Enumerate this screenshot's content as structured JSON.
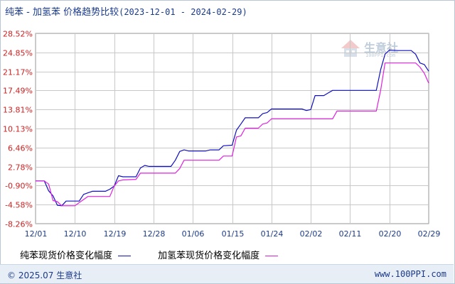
{
  "header": {
    "title": "纯苯 - 加氢苯 价格趋势比较",
    "date_range": "(2023-12-01 - 2024-02-29)"
  },
  "watermark": {
    "brand": "生意社",
    "url": "100PPI.com"
  },
  "footer": {
    "copyright": "© 2025.07 生意社",
    "site": "www.100PPI.com"
  },
  "colors": {
    "series1": "#1010c0",
    "series2": "#e020e0",
    "grid": "#c8c8c8",
    "tick_text": "#cc2222",
    "xtick_text": "#1a3a8a"
  },
  "chart_data": {
    "type": "line",
    "title": "纯苯 - 加氢苯 价格趋势比较(2023-12-01 - 2024-02-29)",
    "y_ticks": [
      "28.52%",
      "24.85%",
      "21.17%",
      "17.49%",
      "13.81%",
      "10.13%",
      "6.46%",
      "2.78%",
      "-0.90%",
      "-4.58%",
      "-8.26%"
    ],
    "y_tick_values": [
      28.52,
      24.85,
      21.17,
      17.49,
      13.81,
      10.13,
      6.46,
      2.78,
      -0.9,
      -4.58,
      -8.26
    ],
    "ylim": [
      -8.26,
      28.52
    ],
    "x_ticks": [
      "12/01",
      "12/10",
      "12/19",
      "12/28",
      "01/06",
      "01/15",
      "01/24",
      "02/02",
      "02/11",
      "02/20",
      "02/29"
    ],
    "x_start": "12/01",
    "x_end": "02/29",
    "grid": true,
    "legend_position": "bottom",
    "series": [
      {
        "name": "纯苯现货价格变化幅度",
        "color": "#1010c0",
        "points": [
          [
            "12/01",
            0
          ],
          [
            "12/03",
            0
          ],
          [
            "12/04",
            -1.9
          ],
          [
            "12/05",
            -2.9
          ],
          [
            "12/06",
            -4.7
          ],
          [
            "12/07",
            -4.8
          ],
          [
            "12/08",
            -3.9
          ],
          [
            "12/11",
            -3.9
          ],
          [
            "12/12",
            -2.6
          ],
          [
            "12/13",
            -2.3
          ],
          [
            "12/14",
            -2.0
          ],
          [
            "12/17",
            -2.0
          ],
          [
            "12/18",
            -1.6
          ],
          [
            "12/19",
            -1.0
          ],
          [
            "12/20",
            1.0
          ],
          [
            "12/21",
            0.8
          ],
          [
            "12/24",
            0.8
          ],
          [
            "12/25",
            2.5
          ],
          [
            "12/26",
            3.0
          ],
          [
            "12/27",
            2.8
          ],
          [
            "01/01",
            2.8
          ],
          [
            "01/02",
            4.0
          ],
          [
            "01/03",
            5.7
          ],
          [
            "01/04",
            6.0
          ],
          [
            "01/05",
            5.8
          ],
          [
            "01/09",
            5.8
          ],
          [
            "01/10",
            6.0
          ],
          [
            "01/12",
            6.0
          ],
          [
            "01/13",
            6.8
          ],
          [
            "01/15",
            6.9
          ],
          [
            "01/16",
            9.8
          ],
          [
            "01/17",
            11.0
          ],
          [
            "01/18",
            12.2
          ],
          [
            "01/21",
            12.2
          ],
          [
            "01/22",
            13.0
          ],
          [
            "01/23",
            13.2
          ],
          [
            "01/24",
            13.9
          ],
          [
            "01/31",
            13.9
          ],
          [
            "02/01",
            13.6
          ],
          [
            "02/02",
            13.8
          ],
          [
            "02/03",
            16.5
          ],
          [
            "02/05",
            16.5
          ],
          [
            "02/06",
            17.0
          ],
          [
            "02/07",
            17.5
          ],
          [
            "02/16",
            17.5
          ],
          [
            "02/17",
            17.5
          ],
          [
            "02/18",
            21.5
          ],
          [
            "02/19",
            24.5
          ],
          [
            "02/20",
            25.3
          ],
          [
            "02/22",
            25.2
          ],
          [
            "02/25",
            25.2
          ],
          [
            "02/26",
            24.5
          ],
          [
            "02/27",
            22.8
          ],
          [
            "02/28",
            22.5
          ],
          [
            "02/29",
            21.2
          ]
        ]
      },
      {
        "name": "加氢苯现货价格变化幅度",
        "color": "#e020e0",
        "points": [
          [
            "12/01",
            0
          ],
          [
            "12/03",
            0
          ],
          [
            "12/04",
            -0.6
          ],
          [
            "12/05",
            -3.8
          ],
          [
            "12/06",
            -4.0
          ],
          [
            "12/07",
            -4.8
          ],
          [
            "12/10",
            -4.8
          ],
          [
            "12/11",
            -4.2
          ],
          [
            "12/12",
            -3.6
          ],
          [
            "12/13",
            -3.0
          ],
          [
            "12/17",
            -3.0
          ],
          [
            "12/18",
            -3.0
          ],
          [
            "12/19",
            -1.0
          ],
          [
            "12/20",
            0.0
          ],
          [
            "12/21",
            0.2
          ],
          [
            "12/24",
            0.3
          ],
          [
            "12/25",
            1.5
          ],
          [
            "12/26",
            1.5
          ],
          [
            "01/02",
            1.5
          ],
          [
            "01/03",
            2.4
          ],
          [
            "01/04",
            4.0
          ],
          [
            "01/05",
            4.0
          ],
          [
            "01/09",
            4.0
          ],
          [
            "01/10",
            4.0
          ],
          [
            "01/12",
            4.0
          ],
          [
            "01/13",
            4.8
          ],
          [
            "01/15",
            4.8
          ],
          [
            "01/16",
            8.5
          ],
          [
            "01/17",
            8.7
          ],
          [
            "01/18",
            10.2
          ],
          [
            "01/21",
            10.2
          ],
          [
            "01/22",
            11.0
          ],
          [
            "01/23",
            11.2
          ],
          [
            "01/24",
            12.0
          ],
          [
            "01/31",
            12.0
          ],
          [
            "02/01",
            12.0
          ],
          [
            "02/07",
            12.0
          ],
          [
            "02/08",
            13.5
          ],
          [
            "02/16",
            13.5
          ],
          [
            "02/17",
            13.5
          ],
          [
            "02/18",
            17.5
          ],
          [
            "02/19",
            22.8
          ],
          [
            "02/25",
            22.8
          ],
          [
            "02/26",
            22.8
          ],
          [
            "02/27",
            22.0
          ],
          [
            "02/28",
            20.8
          ],
          [
            "02/29",
            18.9
          ]
        ]
      }
    ]
  }
}
